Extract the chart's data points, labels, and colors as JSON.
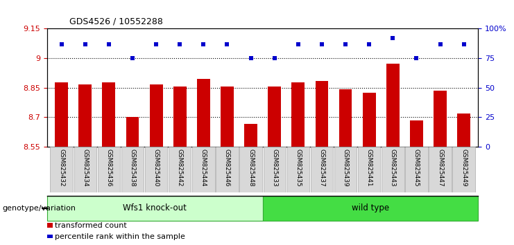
{
  "title": "GDS4526 / 10552288",
  "categories": [
    "GSM825432",
    "GSM825434",
    "GSM825436",
    "GSM825438",
    "GSM825440",
    "GSM825442",
    "GSM825444",
    "GSM825446",
    "GSM825448",
    "GSM825433",
    "GSM825435",
    "GSM825437",
    "GSM825439",
    "GSM825441",
    "GSM825443",
    "GSM825445",
    "GSM825447",
    "GSM825449"
  ],
  "bar_values": [
    8.875,
    8.865,
    8.875,
    8.7,
    8.865,
    8.855,
    8.895,
    8.855,
    8.665,
    8.855,
    8.875,
    8.885,
    8.84,
    8.825,
    8.97,
    8.685,
    8.835,
    8.72
  ],
  "dot_values": [
    9.07,
    9.07,
    9.07,
    9.0,
    9.07,
    9.07,
    9.07,
    9.07,
    9.0,
    9.0,
    9.07,
    9.07,
    9.07,
    9.07,
    9.1,
    9.0,
    9.07,
    9.07
  ],
  "ylim_left": [
    8.55,
    9.15
  ],
  "ylim_right": [
    0,
    100
  ],
  "yticks_left": [
    8.55,
    8.7,
    8.85,
    9.0,
    9.15
  ],
  "yticks_right": [
    0,
    25,
    50,
    75,
    100
  ],
  "hlines": [
    9.0,
    8.85,
    8.7
  ],
  "bar_color": "#cc0000",
  "dot_color": "#0000cc",
  "group1_label": "Wfs1 knock-out",
  "group2_label": "wild type",
  "group1_color": "#ccffcc",
  "group2_color": "#44dd44",
  "group1_count": 9,
  "group2_count": 9,
  "xlabel_left": "genotype/variation",
  "legend_bar_label": "transformed count",
  "legend_dot_label": "percentile rank within the sample",
  "bar_bottom": 8.55,
  "background_color": "#ffffff",
  "tick_color_left": "#cc0000",
  "tick_color_right": "#0000cc",
  "ytick_left_labels": [
    "8.55",
    "8.7",
    "8.85",
    "9",
    "9.15"
  ],
  "ytick_right_labels": [
    "0",
    "25",
    "50",
    "75",
    "100%"
  ]
}
